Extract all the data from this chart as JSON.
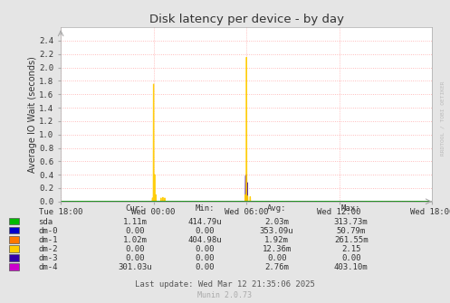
{
  "title": "Disk latency per device - by day",
  "ylabel": "Average IO Wait (seconds)",
  "bg_color": "#e5e5e5",
  "plot_bg_color": "#ffffff",
  "grid_color": "#ffaaaa",
  "ylim": [
    0.0,
    2.6
  ],
  "yticks": [
    0.0,
    0.2,
    0.4,
    0.6,
    0.8,
    1.0,
    1.2,
    1.4,
    1.6,
    1.8,
    2.0,
    2.2,
    2.4
  ],
  "xtick_labels": [
    "Tue 18:00",
    "Wed 00:00",
    "Wed 06:00",
    "Wed 12:00",
    "Wed 18:00"
  ],
  "xtick_positions": [
    0.0,
    0.25,
    0.5,
    0.75,
    1.0
  ],
  "colors": {
    "sda": "#00bb00",
    "dm-0": "#0000cc",
    "dm-1": "#ff7700",
    "dm-2": "#ffcc00",
    "dm-3": "#3300aa",
    "dm-4": "#cc00cc"
  },
  "legend_entries": [
    {
      "name": "sda",
      "color": "#00bb00",
      "cur": "1.11m",
      "min": "414.79u",
      "avg": "2.03m",
      "max": "313.73m"
    },
    {
      "name": "dm-0",
      "color": "#0000cc",
      "cur": "0.00",
      "min": "0.00",
      "avg": "353.09u",
      "max": "50.79m"
    },
    {
      "name": "dm-1",
      "color": "#ff7700",
      "cur": "1.02m",
      "min": "404.98u",
      "avg": "1.92m",
      "max": "261.55m"
    },
    {
      "name": "dm-2",
      "color": "#ffcc00",
      "cur": "0.00",
      "min": "0.00",
      "avg": "12.36m",
      "max": "2.15"
    },
    {
      "name": "dm-3",
      "color": "#3300aa",
      "cur": "0.00",
      "min": "0.00",
      "avg": "0.00",
      "max": "0.00"
    },
    {
      "name": "dm-4",
      "color": "#cc00cc",
      "cur": "301.03u",
      "min": "0.00",
      "avg": "2.76m",
      "max": "403.10m"
    }
  ],
  "footer_text": "Last update: Wed Mar 12 21:35:06 2025",
  "munin_text": "Munin 2.0.73",
  "watermark": "RRDTOOL / TOBI OETIKER"
}
